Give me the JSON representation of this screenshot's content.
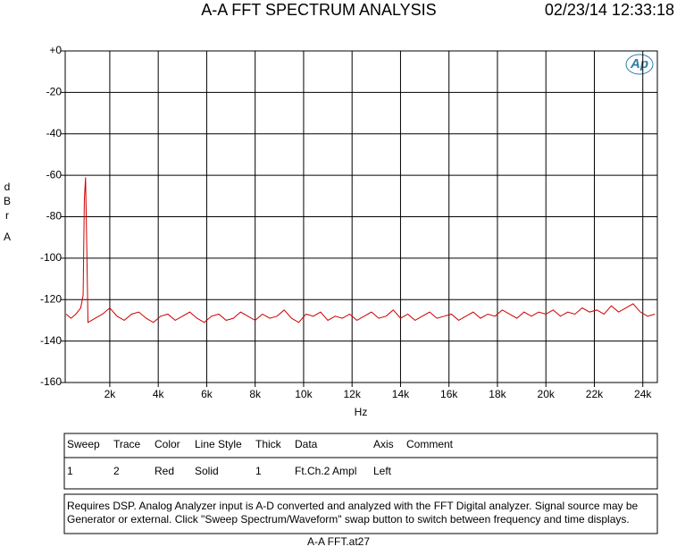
{
  "chart_data": {
    "type": "line",
    "title": "A-A FFT SPECTRUM ANALYSIS",
    "timestamp": "02/23/14 12:33:18",
    "xlabel": "Hz",
    "ylabel": "dBr A",
    "logo": "Ap",
    "xlim": [
      160,
      24600
    ],
    "ylim": [
      -160,
      0
    ],
    "xticks": [
      {
        "value": 2000,
        "label": "2k"
      },
      {
        "value": 4000,
        "label": "4k"
      },
      {
        "value": 6000,
        "label": "6k"
      },
      {
        "value": 8000,
        "label": "8k"
      },
      {
        "value": 10000,
        "label": "10k"
      },
      {
        "value": 12000,
        "label": "12k"
      },
      {
        "value": 14000,
        "label": "14k"
      },
      {
        "value": 16000,
        "label": "16k"
      },
      {
        "value": 18000,
        "label": "18k"
      },
      {
        "value": 20000,
        "label": "20k"
      },
      {
        "value": 22000,
        "label": "22k"
      },
      {
        "value": 24000,
        "label": "24k"
      }
    ],
    "yticks": [
      {
        "value": 0,
        "label": "+0"
      },
      -20,
      -40,
      -60,
      -80,
      -100,
      -120,
      -140,
      -160
    ],
    "grid": true,
    "x": [
      200,
      400,
      600,
      800,
      900,
      950,
      1000,
      1050,
      1100,
      1400,
      1700,
      2000,
      2300,
      2600,
      2900,
      3200,
      3500,
      3800,
      4100,
      4400,
      4700,
      5000,
      5300,
      5600,
      5900,
      6200,
      6500,
      6800,
      7100,
      7400,
      7700,
      8000,
      8300,
      8600,
      8900,
      9200,
      9500,
      9800,
      10100,
      10400,
      10700,
      11000,
      11300,
      11600,
      11900,
      12200,
      12500,
      12800,
      13100,
      13400,
      13700,
      14000,
      14300,
      14600,
      14900,
      15200,
      15500,
      15800,
      16100,
      16400,
      16700,
      17000,
      17300,
      17600,
      17900,
      18200,
      18500,
      18800,
      19100,
      19400,
      19700,
      20000,
      20300,
      20600,
      20900,
      21200,
      21500,
      21800,
      22100,
      22400,
      22700,
      23000,
      23300,
      23600,
      23900,
      24200,
      24500
    ],
    "series": [
      {
        "name": "Ft.Ch.2 Ampl",
        "color": "#cc0000",
        "values": [
          -127,
          -129,
          -127,
          -124,
          -118,
          -72,
          -61,
          -94,
          -131,
          -129,
          -127,
          -124,
          -128,
          -130,
          -127,
          -126,
          -129,
          -131,
          -128,
          -127,
          -130,
          -128,
          -126,
          -129,
          -131,
          -128,
          -127,
          -130,
          -129,
          -126,
          -128,
          -130,
          -127,
          -129,
          -128,
          -125,
          -129,
          -131,
          -127,
          -128,
          -126,
          -130,
          -128,
          -129,
          -127,
          -130,
          -128,
          -126,
          -129,
          -128,
          -125,
          -129,
          -127,
          -130,
          -128,
          -126,
          -129,
          -128,
          -127,
          -130,
          -128,
          -126,
          -129,
          -127,
          -128,
          -125,
          -127,
          -129,
          -126,
          -128,
          -126,
          -127,
          -125,
          -128,
          -126,
          -127,
          -124,
          -126,
          -125,
          -127,
          -123,
          -126,
          -124,
          -122,
          -126,
          -128,
          -127
        ]
      }
    ],
    "legend_table": {
      "headers": [
        "Sweep",
        "Trace",
        "Color",
        "Line Style",
        "Thick",
        "Data",
        "Axis",
        "Comment"
      ],
      "rows": [
        [
          "1",
          "2",
          "Red",
          "Solid",
          "1",
          "Ft.Ch.2 Ampl",
          "Left"
        ]
      ]
    },
    "notes": [
      "Requires DSP.  Analog Analyzer input is A-D converted and analyzed with the FFT Digital analyzer.  Signal source may be",
      "Generator or external.  Click \"Sweep Spectrum/Waveform\" swap button to switch between frequency and time displays."
    ],
    "filename": "A-A FFT.at27"
  }
}
